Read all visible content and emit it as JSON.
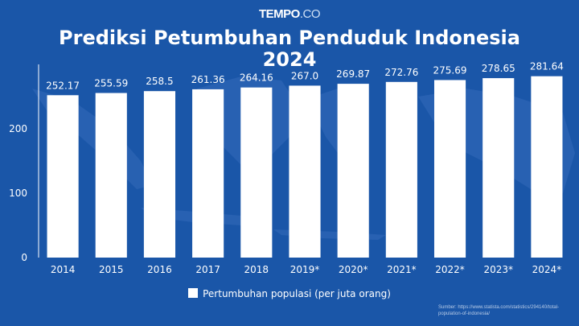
{
  "brand": {
    "name": "TEMPO",
    "suffix": ".CO"
  },
  "title": "Prediksi Petumbuhan Penduduk Indonesia 2024",
  "legend": {
    "label": "Pertumbuhan populasi (per juta orang)"
  },
  "source": {
    "line1": "Sumber: https://www.statista.com/statistics/294140/total-",
    "line2": "population-of-indonesia/"
  },
  "colors": {
    "background": "#1a56a8",
    "bar": "#ffffff",
    "map": "#2a63b3"
  },
  "chart_data": {
    "type": "bar",
    "title": "Prediksi Petumbuhan Penduduk Indonesia 2024",
    "categories": [
      "2014",
      "2015",
      "2016",
      "2017",
      "2018",
      "2019*",
      "2020*",
      "2021*",
      "2022*",
      "2023*",
      "2024*"
    ],
    "series": [
      {
        "name": "Pertumbuhan populasi (per juta orang)",
        "values": [
          252.17,
          255.59,
          258.5,
          261.36,
          264.16,
          267.0,
          269.87,
          272.76,
          275.69,
          278.65,
          281.64
        ],
        "labels": [
          "252.17",
          "255.59",
          "258.5",
          "261.36",
          "264.16",
          "267.0",
          "269.87",
          "272.76",
          "275.69",
          "278.65",
          "281.64"
        ]
      }
    ],
    "yticks": [
      0,
      100,
      200
    ],
    "ylim": [
      0,
      300
    ],
    "xlabel": "",
    "ylabel": "",
    "grid": false,
    "legend_position": "bottom"
  }
}
